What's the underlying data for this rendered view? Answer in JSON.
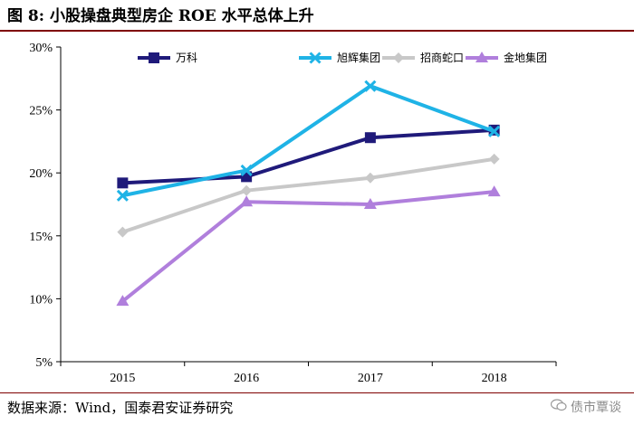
{
  "header": {
    "title": "图 8:  小股操盘典型房企 ROE 水平总体上升"
  },
  "footer": {
    "source": "数据来源：Wind，国泰君安证券研究",
    "watermark": "债市覃谈"
  },
  "colors": {
    "rule": "#7f0000"
  },
  "chart_data": {
    "type": "line",
    "title": "小股操盘典型房企 ROE 水平总体上升",
    "xlabel": "",
    "ylabel": "",
    "categories": [
      "2015",
      "2016",
      "2017",
      "2018"
    ],
    "ylim": [
      5,
      30
    ],
    "yticks": [
      5,
      10,
      15,
      20,
      25,
      30
    ],
    "ytick_labels": [
      "5%",
      "10%",
      "15%",
      "20%",
      "25%",
      "30%"
    ],
    "legend_position": "top",
    "series": [
      {
        "name": "万科",
        "color": "#1f1a7a",
        "marker": "square",
        "values": [
          19.2,
          19.7,
          22.8,
          23.4
        ]
      },
      {
        "name": "旭辉集团",
        "color": "#1fb3e6",
        "marker": "x",
        "values": [
          18.2,
          20.2,
          26.9,
          23.3
        ]
      },
      {
        "name": "招商蛇口",
        "color": "#c8c8c8",
        "marker": "diamond",
        "values": [
          15.3,
          18.6,
          19.6,
          21.1
        ]
      },
      {
        "name": "金地集团",
        "color": "#b07fdc",
        "marker": "triangle",
        "values": [
          9.8,
          17.7,
          17.5,
          18.5
        ]
      }
    ]
  }
}
